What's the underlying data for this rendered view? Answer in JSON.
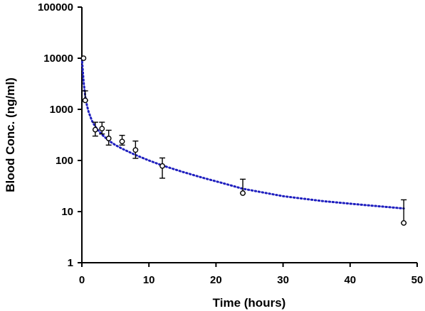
{
  "chart_data": {
    "type": "scatter",
    "title": "",
    "xlabel": "Time (hours)",
    "ylabel": "Blood Conc. (ng/ml)",
    "xlim": [
      0,
      50
    ],
    "ylim": [
      1,
      100000
    ],
    "yscale": "log",
    "grid": false,
    "x_ticks": [
      "0",
      "10",
      "20",
      "30",
      "40",
      "50"
    ],
    "y_ticks": [
      "1",
      "10",
      "100",
      "1000",
      "10000",
      "100000"
    ],
    "observed": {
      "x": [
        0.25,
        0.5,
        2,
        3,
        4,
        6,
        8,
        12,
        24,
        48
      ],
      "y": [
        10000,
        1500,
        400,
        420,
        270,
        235,
        160,
        78,
        23,
        6
      ],
      "err_upper": [
        10000,
        2300,
        560,
        560,
        390,
        310,
        240,
        112,
        43,
        17
      ],
      "err_lower": [
        10000,
        1500,
        300,
        330,
        200,
        200,
        110,
        45,
        23,
        6
      ],
      "marker": "open-circle",
      "color": "#000000"
    },
    "fitted_curve": {
      "style": "dotted",
      "color": "#1f1fbf",
      "x": [
        0,
        0.25,
        0.5,
        0.75,
        1,
        1.5,
        2,
        2.5,
        3,
        4,
        5,
        6,
        8,
        10,
        12,
        15,
        18,
        21,
        24,
        30,
        36,
        42,
        48
      ],
      "y": [
        10000,
        3500,
        1800,
        1200,
        900,
        600,
        460,
        380,
        320,
        245,
        200,
        170,
        128,
        100,
        80,
        60,
        46,
        36,
        28,
        20,
        16,
        13.5,
        11.5
      ]
    }
  }
}
